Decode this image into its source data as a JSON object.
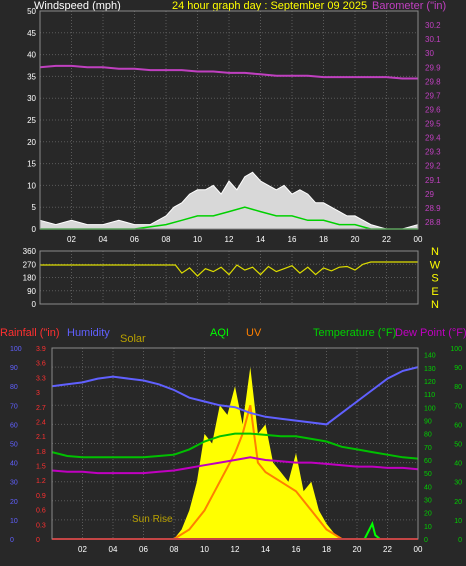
{
  "header": {
    "wind_label": "Windspeed (mph)",
    "title": "24 hour graph day : September 09 2025",
    "baro_label": "Barometer (\"in)"
  },
  "bottom_header": {
    "rain_label": "Rainfall (\"in)",
    "humidity_label": "Humidity",
    "solar_label": "Solar",
    "aqi_label": "AQI",
    "uv_label": "UV",
    "temp_label": "Temperature (°F)",
    "dew_label": "Dew Point (°F)"
  },
  "annotations": {
    "sunrise": "Sun Rise"
  },
  "colors": {
    "background": "#282828",
    "grid": "#5a5a5a",
    "title": "#ffff00",
    "barometer": "#c040c0",
    "wind_gust": "#ffffff",
    "wind_avg": "#00d000",
    "direction": "#dddd00",
    "rain": "#ff0000",
    "humidity": "#6060ff",
    "solar": "#ffff00",
    "uv": "#ff8000",
    "aqi": "#00ff00",
    "temperature": "#00c000",
    "dewpoint": "#c000c0",
    "rain_axis": "#ff3030",
    "humidity_axis": "#6060ff",
    "temp_axis": "#00d000",
    "direction_labels": "#ffff00"
  },
  "chart_data": [
    {
      "type": "line",
      "name": "wind-barometer",
      "x_tick_labels": [
        "02",
        "04",
        "06",
        "08",
        "10",
        "12",
        "14",
        "16",
        "18",
        "20",
        "22",
        "00"
      ],
      "x_range_hours": [
        0,
        24
      ],
      "y_left": {
        "label": "Windspeed (mph)",
        "range": [
          0,
          50
        ],
        "ticks": [
          "0",
          "5",
          "10",
          "15",
          "20",
          "25",
          "30",
          "35",
          "40",
          "45",
          "50"
        ]
      },
      "y_right": {
        "label": "Barometer (\"in)",
        "range": [
          28.75,
          30.3
        ],
        "ticks": [
          "28.8",
          "28.9",
          "29",
          "29.1",
          "29.2",
          "29.3",
          "29.4",
          "29.5",
          "29.6",
          "29.7",
          "29.8",
          "29.9",
          "30",
          "30.1",
          "30.2"
        ]
      },
      "grid": true,
      "series": [
        {
          "name": "Barometer",
          "axis": "right",
          "x": [
            0,
            1,
            2,
            3,
            4,
            5,
            6,
            7,
            8,
            9,
            10,
            11,
            12,
            13,
            14,
            15,
            16,
            17,
            18,
            19,
            20,
            21,
            22,
            23,
            24
          ],
          "y": [
            29.9,
            29.91,
            29.91,
            29.9,
            29.9,
            29.89,
            29.89,
            29.88,
            29.88,
            29.88,
            29.87,
            29.87,
            29.86,
            29.86,
            29.85,
            29.84,
            29.84,
            29.84,
            29.83,
            29.83,
            29.83,
            29.83,
            29.83,
            29.82,
            29.82
          ]
        },
        {
          "name": "Wind gust",
          "axis": "left",
          "x": [
            0,
            1,
            2,
            3,
            4,
            5,
            6,
            7,
            8,
            8.5,
            9,
            9.5,
            10,
            10.5,
            11,
            11.5,
            12,
            12.5,
            13,
            13.5,
            14,
            14.5,
            15,
            15.5,
            16,
            16.5,
            17,
            17.5,
            18,
            18.5,
            19,
            19.5,
            20,
            21,
            22,
            23,
            24
          ],
          "y": [
            2,
            1,
            2,
            1,
            1,
            2,
            1,
            1,
            3,
            5,
            6,
            8,
            9,
            9,
            10,
            8,
            11,
            9,
            12,
            13,
            11,
            10,
            9,
            10,
            8,
            9,
            8,
            6,
            6,
            5,
            4,
            3,
            3,
            1,
            0,
            0,
            1
          ]
        },
        {
          "name": "Wind average",
          "axis": "left",
          "x": [
            0,
            2,
            4,
            6,
            8,
            9,
            10,
            11,
            12,
            13,
            14,
            15,
            16,
            17,
            18,
            19,
            20,
            21,
            22,
            24
          ],
          "y": [
            0,
            0,
            0,
            0,
            1,
            2,
            3,
            3,
            4,
            5,
            4,
            3,
            3,
            2,
            2,
            1,
            1,
            0,
            0,
            0
          ]
        }
      ]
    },
    {
      "type": "line",
      "name": "wind-direction",
      "x_range_hours": [
        0,
        24
      ],
      "y_left": {
        "range": [
          0,
          360
        ],
        "ticks": [
          "0",
          "90",
          "180",
          "270",
          "360"
        ]
      },
      "y_right_labels": [
        "N",
        "W",
        "S",
        "E",
        "N"
      ],
      "grid": true,
      "series": [
        {
          "name": "Wind direction",
          "x": [
            0,
            2,
            4,
            6,
            8,
            8.6,
            9,
            9.5,
            10,
            10.5,
            11,
            11.5,
            12,
            12.5,
            13,
            13.5,
            14,
            14.5,
            15,
            15.5,
            16,
            16.5,
            17,
            17.5,
            18,
            18.5,
            19,
            19.5,
            20,
            20.5,
            21,
            22,
            23,
            24
          ],
          "y": [
            265,
            265,
            265,
            265,
            265,
            265,
            210,
            245,
            190,
            240,
            220,
            250,
            200,
            265,
            230,
            250,
            200,
            255,
            220,
            240,
            260,
            210,
            250,
            200,
            245,
            225,
            250,
            255,
            230,
            270,
            285,
            285,
            285,
            285
          ]
        }
      ]
    },
    {
      "type": "line",
      "name": "rain-humidity-solar-temperature",
      "x_tick_labels": [
        "02",
        "04",
        "06",
        "08",
        "10",
        "12",
        "14",
        "16",
        "18",
        "20",
        "22",
        "00"
      ],
      "x_range_hours": [
        0,
        24
      ],
      "y_rain": {
        "label": "Rainfall (\"in)",
        "range": [
          0,
          3.9
        ],
        "ticks": [
          "0",
          "0.3",
          "0.6",
          "0.9",
          "1.2",
          "1.5",
          "1.8",
          "2.1",
          "2.4",
          "2.7",
          "3",
          "3.3",
          "3.6",
          "3.9"
        ]
      },
      "y_humidity": {
        "label": "Humidity",
        "range": [
          0,
          100
        ],
        "ticks": [
          "0",
          "10",
          "20",
          "30",
          "40",
          "50",
          "60",
          "70",
          "80",
          "90",
          "100"
        ]
      },
      "y_temperature": {
        "label": "Temperature (°F)",
        "range": [
          0,
          145
        ],
        "ticks": [
          "0",
          "10",
          "20",
          "30",
          "40",
          "50",
          "60",
          "70",
          "80",
          "90",
          "100",
          "110",
          "120",
          "130",
          "140"
        ]
      },
      "y_right_outer": {
        "range": [
          0,
          100
        ],
        "ticks": [
          "0",
          "10",
          "20",
          "30",
          "40",
          "50",
          "60",
          "70",
          "80",
          "90",
          "100"
        ]
      },
      "grid": true,
      "series": [
        {
          "name": "Humidity",
          "axis": "humidity",
          "x": [
            0,
            1,
            2,
            3,
            4,
            5,
            6,
            7,
            8,
            9,
            10,
            11,
            12,
            13,
            14,
            15,
            16,
            17,
            18,
            19,
            20,
            21,
            22,
            23,
            24
          ],
          "y": [
            80,
            81,
            82,
            84,
            85,
            84,
            83,
            81,
            78,
            74,
            72,
            70,
            69,
            66,
            64,
            63,
            62,
            61,
            60,
            66,
            72,
            78,
            84,
            88,
            90
          ]
        },
        {
          "name": "Temperature",
          "axis": "temperature",
          "x": [
            0,
            1,
            2,
            3,
            4,
            5,
            6,
            7,
            8,
            9,
            10,
            11,
            12,
            13,
            14,
            15,
            16,
            17,
            18,
            19,
            20,
            21,
            22,
            23,
            24
          ],
          "y": [
            66,
            63,
            62,
            62,
            62,
            62,
            62,
            63,
            64,
            68,
            74,
            78,
            80,
            80,
            79,
            78,
            78,
            76,
            74,
            70,
            68,
            66,
            64,
            62,
            61
          ]
        },
        {
          "name": "Dew Point",
          "axis": "temperature",
          "x": [
            0,
            1,
            2,
            3,
            4,
            5,
            6,
            7,
            8,
            9,
            10,
            11,
            12,
            13,
            14,
            15,
            16,
            17,
            18,
            19,
            20,
            21,
            22,
            23,
            24
          ],
          "y": [
            52,
            51,
            51,
            50,
            50,
            50,
            50,
            51,
            52,
            54,
            56,
            58,
            60,
            62,
            60,
            59,
            58,
            58,
            57,
            56,
            55,
            55,
            54,
            54,
            53
          ]
        },
        {
          "name": "Solar",
          "axis": "humidity",
          "x": [
            0,
            8,
            8.5,
            9,
            9.5,
            10,
            10.5,
            11,
            11.5,
            12,
            12.5,
            13,
            13.5,
            14,
            14.5,
            15,
            15.5,
            16,
            16.5,
            17,
            17.5,
            18,
            18.5,
            19,
            24
          ],
          "y": [
            0,
            0,
            5,
            15,
            30,
            55,
            50,
            70,
            65,
            80,
            60,
            90,
            55,
            60,
            40,
            35,
            30,
            45,
            25,
            30,
            15,
            8,
            3,
            0,
            0
          ]
        },
        {
          "name": "UV",
          "axis": "humidity",
          "x": [
            0,
            8,
            9,
            10,
            11,
            12,
            12.5,
            13,
            13.5,
            14,
            15,
            16,
            17,
            18,
            19,
            24
          ],
          "y": [
            0,
            0,
            5,
            15,
            30,
            45,
            55,
            70,
            40,
            35,
            30,
            25,
            15,
            5,
            0,
            0
          ]
        },
        {
          "name": "AQI",
          "axis": "humidity",
          "x": [
            0,
            20.5,
            21,
            21.2,
            21.5,
            24
          ],
          "y": [
            0,
            0,
            8,
            2,
            0,
            0
          ]
        },
        {
          "name": "Rainfall",
          "axis": "rain",
          "x": [
            0,
            24
          ],
          "y": [
            0,
            0
          ]
        }
      ]
    }
  ]
}
